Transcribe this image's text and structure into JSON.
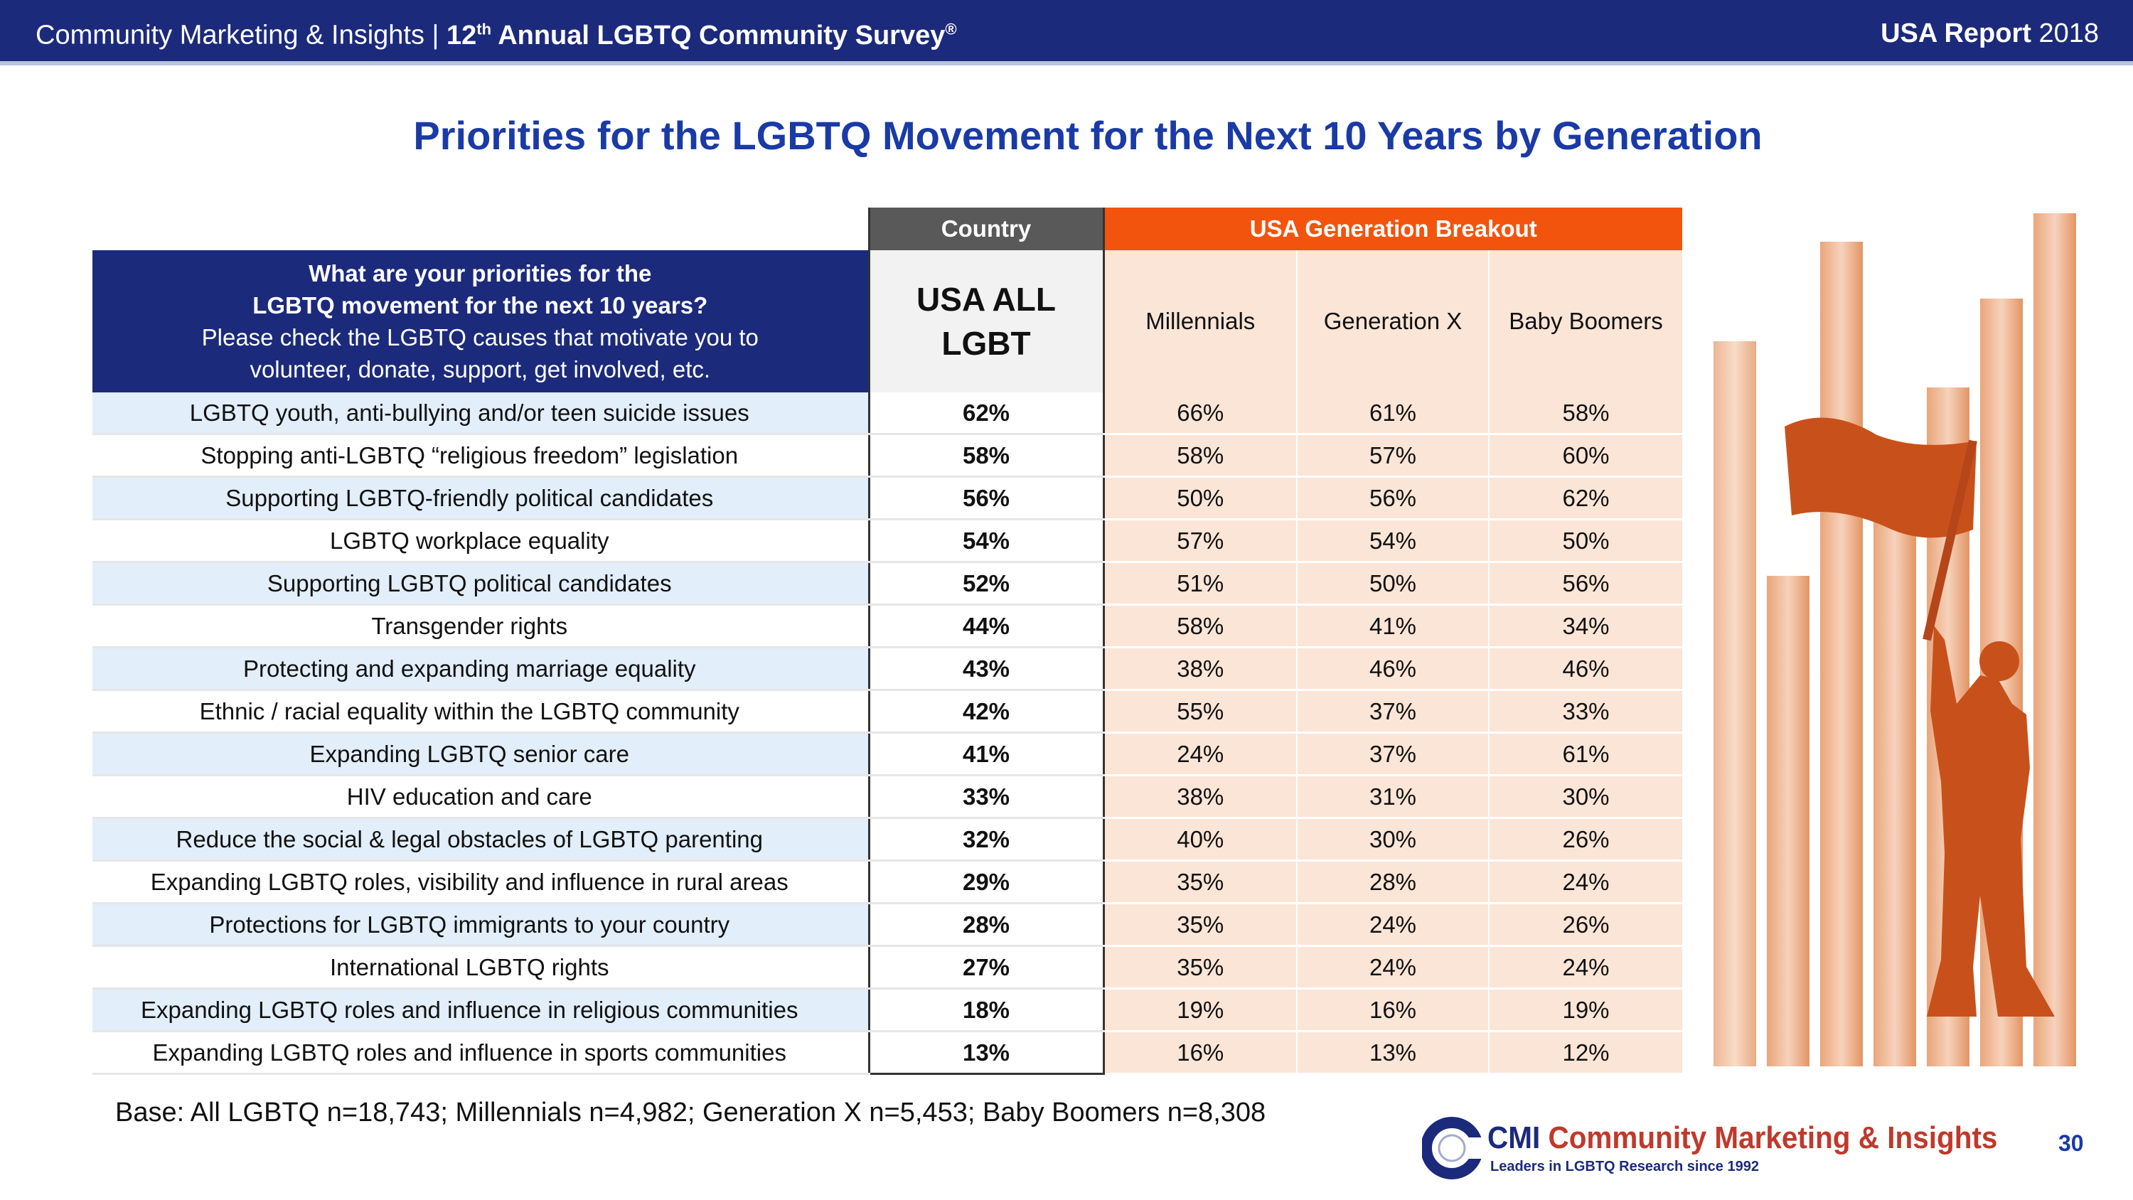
{
  "header": {
    "company": "Community Marketing & Insights",
    "separator": "|",
    "survey_prefix": "12",
    "survey_sup": "th",
    "survey_name": "Annual LGBTQ Community Survey",
    "survey_reg": "®",
    "report_bold": "USA Report",
    "report_year": "2018"
  },
  "title": "Priorities for the LGBTQ Movement for the Next 10 Years by Generation",
  "table": {
    "band_country": "Country",
    "band_generation": "USA Generation Breakout",
    "question_line1": "What are your priorities for the",
    "question_line2": "LGBTQ movement for the next 10 years?",
    "question_line3": "Please check the LGBTQ causes that motivate you to",
    "question_line4": "volunteer, donate, support, get involved, etc.",
    "all_line1": "USA ALL",
    "all_line2": "LGBT",
    "gen1": "Millennials",
    "gen2": "Generation X",
    "gen3": "Baby Boomers",
    "rows": [
      {
        "cause": "LGBTQ youth, anti-bullying and/or teen suicide issues",
        "all": "62%",
        "mil": "66%",
        "genx": "61%",
        "boom": "58%"
      },
      {
        "cause": "Stopping anti-LGBTQ “religious freedom” legislation",
        "all": "58%",
        "mil": "58%",
        "genx": "57%",
        "boom": "60%"
      },
      {
        "cause": "Supporting LGBTQ-friendly political candidates",
        "all": "56%",
        "mil": "50%",
        "genx": "56%",
        "boom": "62%"
      },
      {
        "cause": "LGBTQ workplace equality",
        "all": "54%",
        "mil": "57%",
        "genx": "54%",
        "boom": "50%"
      },
      {
        "cause": "Supporting LGBTQ political candidates",
        "all": "52%",
        "mil": "51%",
        "genx": "50%",
        "boom": "56%"
      },
      {
        "cause": "Transgender rights",
        "all": "44%",
        "mil": "58%",
        "genx": "41%",
        "boom": "34%"
      },
      {
        "cause": "Protecting and expanding marriage equality",
        "all": "43%",
        "mil": "38%",
        "genx": "46%",
        "boom": "46%"
      },
      {
        "cause": "Ethnic / racial equality within the LGBTQ community",
        "all": "42%",
        "mil": "55%",
        "genx": "37%",
        "boom": "33%"
      },
      {
        "cause": "Expanding LGBTQ senior care",
        "all": "41%",
        "mil": "24%",
        "genx": "37%",
        "boom": "61%"
      },
      {
        "cause": "HIV education and care",
        "all": "33%",
        "mil": "38%",
        "genx": "31%",
        "boom": "30%"
      },
      {
        "cause": "Reduce the social & legal obstacles of LGBTQ parenting",
        "all": "32%",
        "mil": "40%",
        "genx": "30%",
        "boom": "26%"
      },
      {
        "cause": "Expanding LGBTQ roles, visibility and influence in rural areas",
        "all": "29%",
        "mil": "35%",
        "genx": "28%",
        "boom": "24%"
      },
      {
        "cause": "Protections for LGBTQ immigrants to your country",
        "all": "28%",
        "mil": "35%",
        "genx": "24%",
        "boom": "26%"
      },
      {
        "cause": "International LGBTQ rights",
        "all": "27%",
        "mil": "35%",
        "genx": "24%",
        "boom": "24%"
      },
      {
        "cause": "Expanding LGBTQ roles and influence in religious communities",
        "all": "18%",
        "mil": "19%",
        "genx": "16%",
        "boom": "19%"
      },
      {
        "cause": "Expanding LGBTQ roles and influence in sports communities",
        "all": "13%",
        "mil": "16%",
        "genx": "13%",
        "boom": "12%"
      }
    ]
  },
  "base_note": "Base: All LGBTQ n=18,743; Millennials n=4,982; Generation X n=5,453; Baby Boomers n=8,308",
  "logo": {
    "brand_short": "CMI",
    "brand_full": "Community Marketing & Insights",
    "tagline": "Leaders in LGBTQ Research since 1992"
  },
  "page_number": "30",
  "colors": {
    "navy": "#1c2a7c",
    "title_blue": "#1a3aa6",
    "orange": "#f2540e",
    "peach": "#fbe5d6",
    "light_blue": "#e2eef9",
    "country_grey": "#595959",
    "illustration_orange": "#c8511b"
  }
}
